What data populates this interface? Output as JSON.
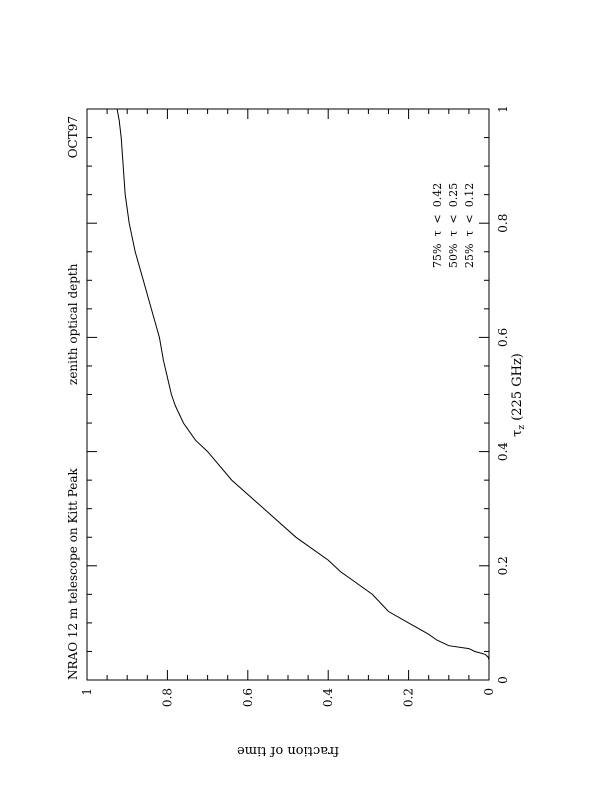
{
  "chart_data": {
    "type": "line",
    "title": "NRAO 12 m telescope on Kitt Peak",
    "subtitle": "zenith optical depth",
    "tag": "OCT97",
    "xlabel": "τz (225 GHz)",
    "xlabel_main": "τ",
    "xlabel_sub": "z",
    "xlabel_rest": " (225 GHz)",
    "ylabel": "fraction of time",
    "xlim": [
      0,
      1
    ],
    "ylim": [
      0,
      1
    ],
    "x_ticks": [
      {
        "value": 0,
        "label": "0"
      },
      {
        "value": 0.2,
        "label": "0.2"
      },
      {
        "value": 0.4,
        "label": "0.4"
      },
      {
        "value": 0.6,
        "label": "0.6"
      },
      {
        "value": 0.8,
        "label": "0.8"
      },
      {
        "value": 1,
        "label": "1"
      }
    ],
    "y_ticks": [
      {
        "value": 0,
        "label": "0"
      },
      {
        "value": 0.2,
        "label": "0.2"
      },
      {
        "value": 0.4,
        "label": "0.4"
      },
      {
        "value": 0.6,
        "label": "0.6"
      },
      {
        "value": 0.8,
        "label": "0.8"
      },
      {
        "value": 1,
        "label": "1"
      }
    ],
    "annotations": [
      "75%  τ  <  0.42",
      "50%  τ  <  0.25",
      "25%  τ  <  0.12"
    ],
    "grid": false,
    "orientation": "rotated 90° clockwise",
    "series": [
      {
        "x": [
          0.0,
          0.02,
          0.035,
          0.04,
          0.045,
          0.05,
          0.055,
          0.06,
          0.07,
          0.08,
          0.09,
          0.1,
          0.12,
          0.15,
          0.17,
          0.19,
          0.21,
          0.25,
          0.3,
          0.35,
          0.4,
          0.42,
          0.45,
          0.48,
          0.5,
          0.53,
          0.56,
          0.6,
          0.65,
          0.7,
          0.75,
          0.8,
          0.85,
          0.9,
          0.95,
          0.98,
          1.0
        ],
        "y": [
          0.0,
          0.0,
          0.0,
          0.002,
          0.01,
          0.035,
          0.05,
          0.1,
          0.13,
          0.15,
          0.175,
          0.2,
          0.25,
          0.29,
          0.33,
          0.37,
          0.4,
          0.48,
          0.56,
          0.64,
          0.7,
          0.73,
          0.76,
          0.78,
          0.79,
          0.8,
          0.81,
          0.82,
          0.84,
          0.86,
          0.88,
          0.895,
          0.905,
          0.91,
          0.915,
          0.92,
          0.925
        ]
      }
    ]
  }
}
